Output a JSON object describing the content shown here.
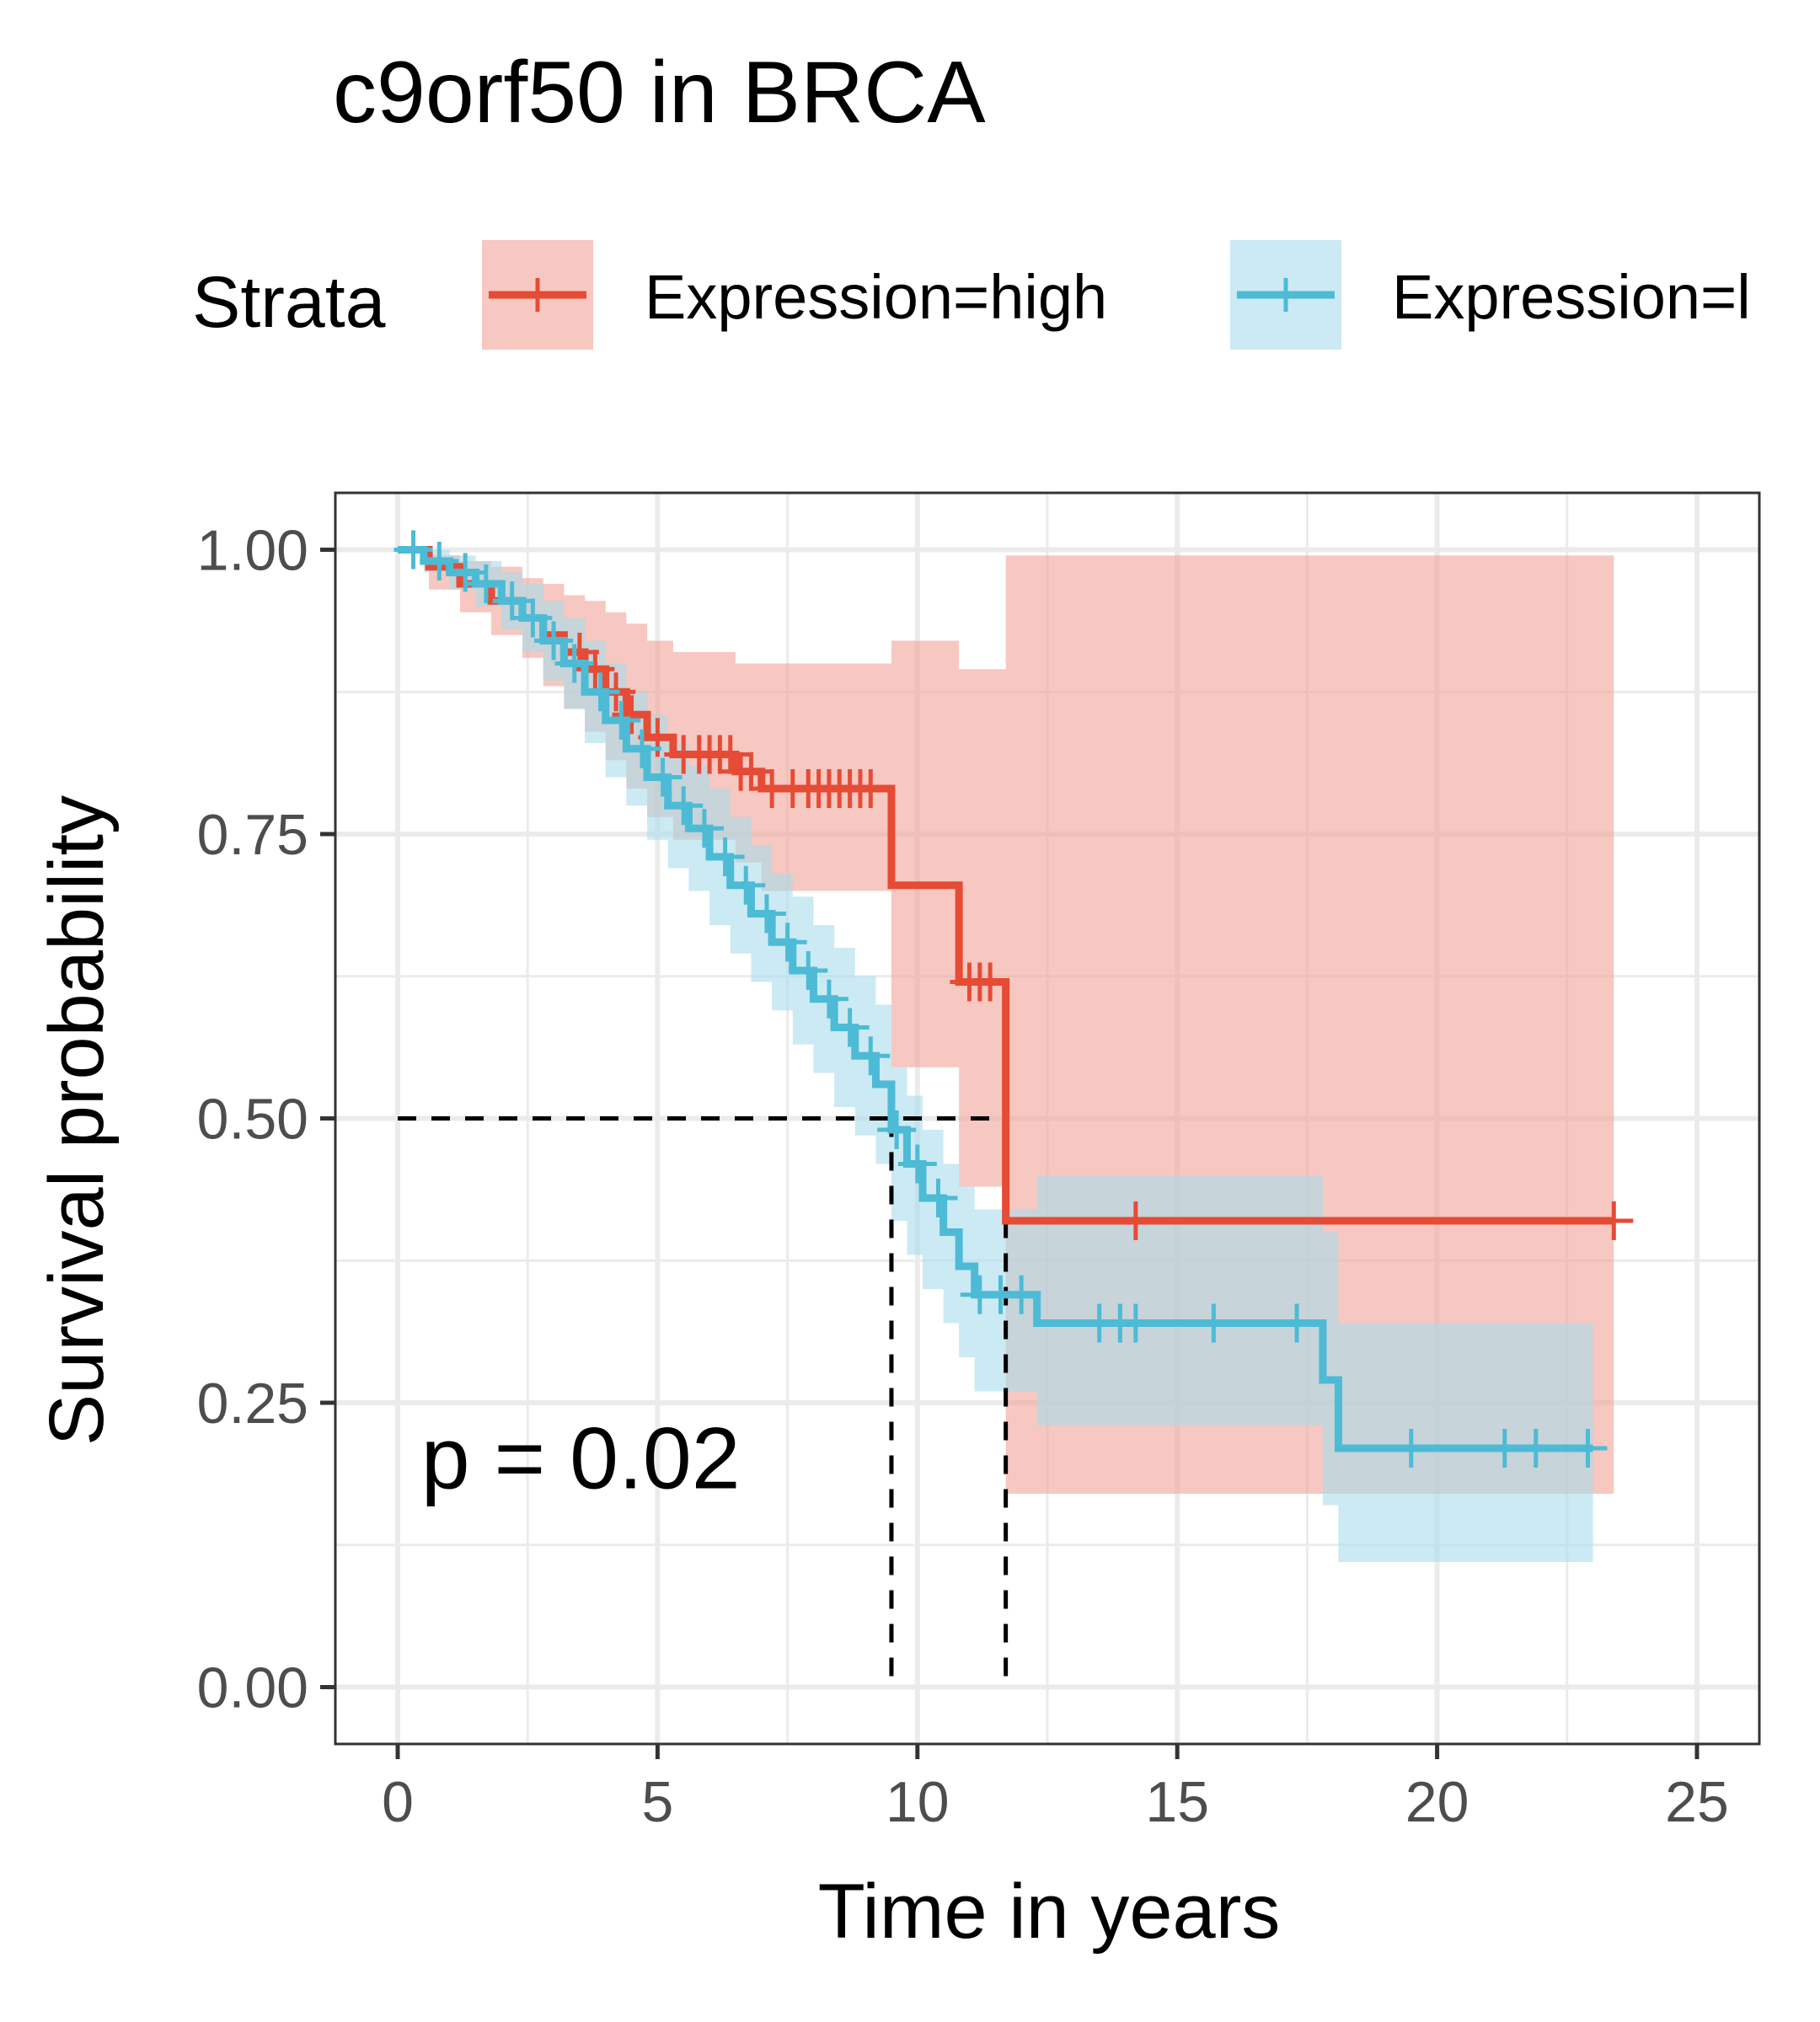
{
  "chart_data": {
    "type": "line",
    "subtype": "kaplan-meier",
    "title": "c9orf50 in BRCA",
    "xlabel": "Time in years",
    "ylabel": "Survival probability",
    "xlim": [
      -1.2,
      26.2
    ],
    "ylim": [
      -0.05,
      1.05
    ],
    "xticks": [
      0,
      5,
      10,
      15,
      20,
      25
    ],
    "xtick_labels": [
      "0",
      "5",
      "10",
      "15",
      "20",
      "25"
    ],
    "yticks": [
      0,
      0.25,
      0.5,
      0.75,
      1.0
    ],
    "ytick_labels": [
      "0.00",
      "0.25",
      "0.50",
      "0.75",
      "1.00"
    ],
    "grid": true,
    "legend": {
      "title": "Strata",
      "position": "top",
      "entries": [
        "Expression=high",
        "Expression=l"
      ]
    },
    "annotation": "p = 0.02",
    "median_survival": {
      "y": 0.5,
      "x": [
        9.5,
        11.7
      ]
    },
    "series": [
      {
        "name": "Expression=high",
        "color": "#E64B35",
        "band_color": "#F0A398",
        "steps": [
          [
            0,
            1.0
          ],
          [
            0.6,
            0.985
          ],
          [
            1.2,
            0.97
          ],
          [
            1.8,
            0.955
          ],
          [
            2.4,
            0.94
          ],
          [
            2.8,
            0.925
          ],
          [
            3.2,
            0.91
          ],
          [
            3.6,
            0.895
          ],
          [
            4.0,
            0.875
          ],
          [
            4.4,
            0.855
          ],
          [
            4.8,
            0.835
          ],
          [
            5.3,
            0.82
          ],
          [
            6.5,
            0.805
          ],
          [
            7.0,
            0.79
          ],
          [
            9.5,
            0.705
          ],
          [
            10.8,
            0.62
          ],
          [
            11.7,
            0.41
          ],
          [
            23.4,
            0.41
          ]
        ],
        "censor_times": [
          3.5,
          3.8,
          4.2,
          4.5,
          5.0,
          5.5,
          5.8,
          6.0,
          6.2,
          6.4,
          6.6,
          6.8,
          7.2,
          7.6,
          7.9,
          8.1,
          8.3,
          8.5,
          8.7,
          8.9,
          9.1,
          11.0,
          11.2,
          11.4,
          14.2,
          23.4
        ],
        "ci": [
          [
            0,
            1.0,
            1.0
          ],
          [
            0.6,
            0.995,
            0.965
          ],
          [
            1.2,
            0.99,
            0.945
          ],
          [
            1.8,
            0.985,
            0.925
          ],
          [
            2.4,
            0.975,
            0.905
          ],
          [
            2.8,
            0.97,
            0.88
          ],
          [
            3.2,
            0.96,
            0.86
          ],
          [
            3.6,
            0.955,
            0.84
          ],
          [
            4.0,
            0.945,
            0.815
          ],
          [
            4.4,
            0.935,
            0.79
          ],
          [
            4.8,
            0.92,
            0.765
          ],
          [
            5.3,
            0.91,
            0.745
          ],
          [
            6.5,
            0.9,
            0.725
          ],
          [
            7.0,
            0.9,
            0.7
          ],
          [
            9.5,
            0.92,
            0.545
          ],
          [
            10.8,
            0.895,
            0.44
          ],
          [
            11.7,
            0.995,
            0.17
          ],
          [
            23.4,
            0.995,
            0.17
          ]
        ]
      },
      {
        "name": "Expression=l",
        "color": "#4DBBD5",
        "band_color": "#A8DCEB",
        "steps": [
          [
            0,
            1.0
          ],
          [
            0.5,
            0.99
          ],
          [
            1.0,
            0.98
          ],
          [
            1.5,
            0.97
          ],
          [
            2.0,
            0.955
          ],
          [
            2.4,
            0.94
          ],
          [
            2.8,
            0.92
          ],
          [
            3.2,
            0.9
          ],
          [
            3.6,
            0.875
          ],
          [
            4.0,
            0.85
          ],
          [
            4.4,
            0.825
          ],
          [
            4.8,
            0.8
          ],
          [
            5.2,
            0.775
          ],
          [
            5.6,
            0.755
          ],
          [
            6.0,
            0.73
          ],
          [
            6.4,
            0.705
          ],
          [
            6.8,
            0.68
          ],
          [
            7.2,
            0.655
          ],
          [
            7.6,
            0.63
          ],
          [
            8.0,
            0.605
          ],
          [
            8.4,
            0.58
          ],
          [
            8.8,
            0.555
          ],
          [
            9.2,
            0.53
          ],
          [
            9.5,
            0.49
          ],
          [
            9.8,
            0.46
          ],
          [
            10.1,
            0.43
          ],
          [
            10.5,
            0.4
          ],
          [
            10.8,
            0.37
          ],
          [
            11.1,
            0.345
          ],
          [
            12.3,
            0.32
          ],
          [
            17.8,
            0.27
          ],
          [
            18.1,
            0.21
          ],
          [
            23.0,
            0.21
          ]
        ],
        "censor_times": [
          0.3,
          0.8,
          1.3,
          1.7,
          2.2,
          2.6,
          3.0,
          3.4,
          3.9,
          4.3,
          4.7,
          5.1,
          5.5,
          5.9,
          6.3,
          6.7,
          7.1,
          7.5,
          7.9,
          8.3,
          8.7,
          9.1,
          9.6,
          10.0,
          10.4,
          11.2,
          11.6,
          12.0,
          13.5,
          13.9,
          14.2,
          15.7,
          17.3,
          19.5,
          21.3,
          21.9,
          22.9
        ],
        "ci": [
          [
            0,
            1.0,
            1.0
          ],
          [
            0.5,
            1.0,
            0.98
          ],
          [
            1.0,
            0.995,
            0.965
          ],
          [
            1.5,
            0.99,
            0.95
          ],
          [
            2.0,
            0.98,
            0.93
          ],
          [
            2.4,
            0.97,
            0.91
          ],
          [
            2.8,
            0.955,
            0.885
          ],
          [
            3.2,
            0.94,
            0.86
          ],
          [
            3.6,
            0.92,
            0.83
          ],
          [
            4.0,
            0.9,
            0.8
          ],
          [
            4.4,
            0.875,
            0.775
          ],
          [
            4.8,
            0.855,
            0.745
          ],
          [
            5.2,
            0.83,
            0.72
          ],
          [
            5.6,
            0.81,
            0.7
          ],
          [
            6.0,
            0.79,
            0.67
          ],
          [
            6.4,
            0.765,
            0.645
          ],
          [
            6.8,
            0.74,
            0.62
          ],
          [
            7.2,
            0.715,
            0.595
          ],
          [
            7.6,
            0.695,
            0.565
          ],
          [
            8.0,
            0.67,
            0.54
          ],
          [
            8.4,
            0.65,
            0.51
          ],
          [
            8.8,
            0.625,
            0.485
          ],
          [
            9.2,
            0.6,
            0.46
          ],
          [
            9.5,
            0.545,
            0.41
          ],
          [
            9.8,
            0.52,
            0.38
          ],
          [
            10.1,
            0.49,
            0.35
          ],
          [
            10.5,
            0.46,
            0.32
          ],
          [
            10.8,
            0.44,
            0.29
          ],
          [
            11.1,
            0.42,
            0.26
          ],
          [
            12.3,
            0.45,
            0.23
          ],
          [
            17.8,
            0.4,
            0.16
          ],
          [
            18.1,
            0.32,
            0.11
          ],
          [
            23.0,
            0.32,
            0.11
          ]
        ]
      }
    ]
  }
}
